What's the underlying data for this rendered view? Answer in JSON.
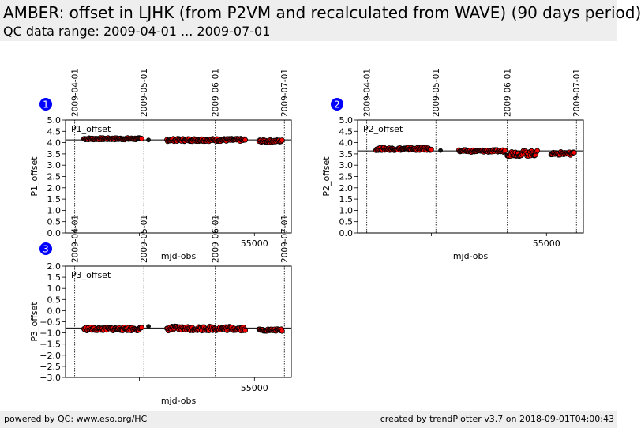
{
  "header": {
    "title": "AMBER: offset in LJHK (from P2VM and recalculated from WAVE) (90 days period)",
    "subtitle": "QC data range: 2009-04-01 ... 2009-07-01"
  },
  "footer": {
    "left": "powered by QC: www.eso.org/HC",
    "right": "created by trendPlotter v3.7 on 2018-09-01T04:00:43"
  },
  "colors": {
    "point_fill": "#ff0000",
    "point_edge": "#000000",
    "badge": "#0000ff",
    "header_bg": "#eeeeee"
  },
  "chart_data": [
    {
      "type": "scatter",
      "id": "1",
      "label": "P1_offset",
      "xlabel": "mjd-obs",
      "ylabel": "P1_offset",
      "xlim": [
        54918,
        55016
      ],
      "ylim": [
        0.0,
        5.0
      ],
      "yticks": [
        "0.0",
        "0.5",
        "1.0",
        "1.5",
        "2.0",
        "2.5",
        "3.0",
        "3.5",
        "4.0",
        "4.5",
        "5.0"
      ],
      "ytick_values": [
        0,
        0.5,
        1,
        1.5,
        2,
        2.5,
        3,
        3.5,
        4,
        4.5,
        5
      ],
      "xticks": [
        54950,
        55000
      ],
      "xtick_labels": [
        "",
        "55000"
      ],
      "reference_line": 4.12,
      "date_markers": [
        {
          "x": 54922,
          "label": "2009-04-01"
        },
        {
          "x": 54952,
          "label": "2009-05-01"
        },
        {
          "x": 54983,
          "label": "2009-06-01"
        },
        {
          "x": 55013,
          "label": "2009-07-01"
        }
      ],
      "segments": [
        {
          "x0": 54926,
          "x1": 54951,
          "y": 4.17,
          "amp": 0.04
        },
        {
          "x0": 54962,
          "x1": 54996,
          "y": 4.12,
          "amp": 0.06
        },
        {
          "x0": 55002,
          "x1": 55012,
          "y": 4.07,
          "amp": 0.05
        }
      ],
      "extra_points": [
        [
          54954,
          4.12
        ]
      ]
    },
    {
      "type": "scatter",
      "id": "2",
      "label": "P2_offset",
      "xlabel": "mjd-obs",
      "ylabel": "P2_offset",
      "xlim": [
        54918,
        55016
      ],
      "ylim": [
        0.0,
        5.0
      ],
      "yticks": [
        "0.0",
        "0.5",
        "1.0",
        "1.5",
        "2.0",
        "2.5",
        "3.0",
        "3.5",
        "4.0",
        "4.5",
        "5.0"
      ],
      "ytick_values": [
        0,
        0.5,
        1,
        1.5,
        2,
        2.5,
        3,
        3.5,
        4,
        4.5,
        5
      ],
      "xticks": [
        54950,
        55000
      ],
      "xtick_labels": [
        "",
        "55000"
      ],
      "reference_line": 3.63,
      "date_markers": [
        {
          "x": 54922,
          "label": "2009-04-01"
        },
        {
          "x": 54952,
          "label": "2009-05-01"
        },
        {
          "x": 54983,
          "label": "2009-06-01"
        },
        {
          "x": 55013,
          "label": "2009-07-01"
        }
      ],
      "segments": [
        {
          "x0": 54926,
          "x1": 54950,
          "y": 3.72,
          "amp": 0.06
        },
        {
          "x0": 54962,
          "x1": 54982,
          "y": 3.63,
          "amp": 0.05
        },
        {
          "x0": 54983,
          "x1": 54996,
          "y": 3.52,
          "amp": 0.12
        },
        {
          "x0": 55002,
          "x1": 55012,
          "y": 3.52,
          "amp": 0.07
        }
      ],
      "extra_points": [
        [
          54954,
          3.65
        ]
      ]
    },
    {
      "type": "scatter",
      "id": "3",
      "label": "P3_offset",
      "xlabel": "mjd-obs",
      "ylabel": "P3_offset",
      "xlim": [
        54918,
        55016
      ],
      "ylim": [
        -3.0,
        2.0
      ],
      "yticks": [
        "2.0",
        "1.5",
        "1.0",
        "0.5",
        "0.0",
        "−0.5",
        "−1.0",
        "−1.5",
        "−2.0",
        "−2.5",
        "−3.0"
      ],
      "ytick_values": [
        2,
        1.5,
        1,
        0.5,
        0,
        -0.5,
        -1,
        -1.5,
        -2,
        -2.5,
        -3
      ],
      "xticks": [
        54950,
        55000
      ],
      "xtick_labels": [
        "",
        "55000"
      ],
      "reference_line": -0.78,
      "date_markers": [
        {
          "x": 54922,
          "label": "2009-04-01"
        },
        {
          "x": 54952,
          "label": "2009-05-01"
        },
        {
          "x": 54983,
          "label": "2009-06-01"
        },
        {
          "x": 55013,
          "label": "2009-07-01"
        }
      ],
      "segments": [
        {
          "x0": 54926,
          "x1": 54951,
          "y": -0.82,
          "amp": 0.08
        },
        {
          "x0": 54962,
          "x1": 54996,
          "y": -0.8,
          "amp": 0.1
        },
        {
          "x0": 55002,
          "x1": 55012,
          "y": -0.87,
          "amp": 0.05
        }
      ],
      "extra_points": [
        [
          54954,
          -0.7
        ]
      ]
    }
  ]
}
